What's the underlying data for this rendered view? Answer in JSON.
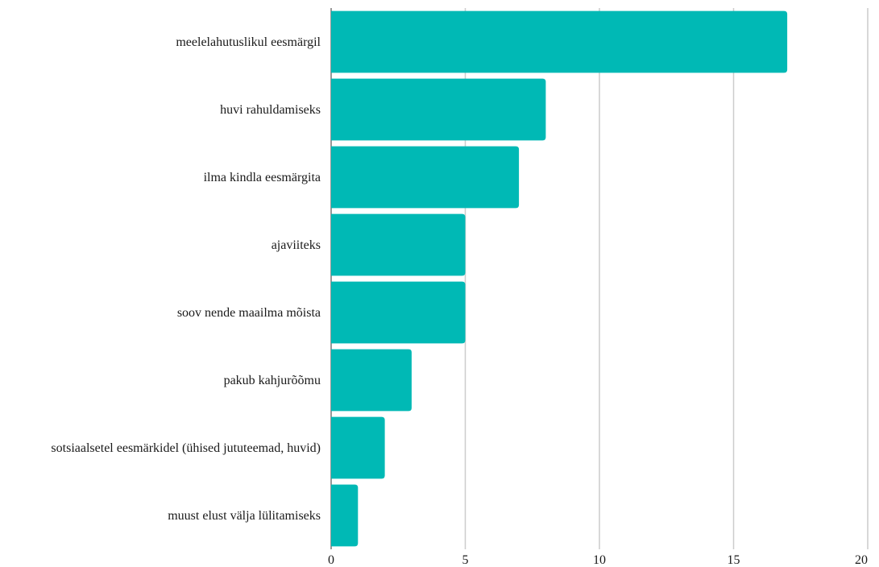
{
  "chart_data": {
    "type": "bar",
    "orientation": "horizontal",
    "title": "",
    "xlabel": "",
    "ylabel": "",
    "categories": [
      "meelelahutuslikul eesmärgil",
      "huvi rahuldamiseks",
      "ilma kindla eesmärgita",
      "ajaviiteks",
      "soov nende maailma mõista",
      "pakub kahjurõõmu",
      "sotsiaalsetel eesmärkidel (ühised jututeemad, huvid)",
      "muust elust välja lülitamiseks"
    ],
    "values": [
      17,
      8,
      7,
      5,
      5,
      3,
      2,
      1
    ],
    "xlim": [
      0,
      20
    ],
    "xticks": [
      0,
      5,
      10,
      15,
      20
    ],
    "grid": "vertical",
    "legend": "none",
    "bar_color": "#00b9b5",
    "grid_color": "#cccccc"
  }
}
